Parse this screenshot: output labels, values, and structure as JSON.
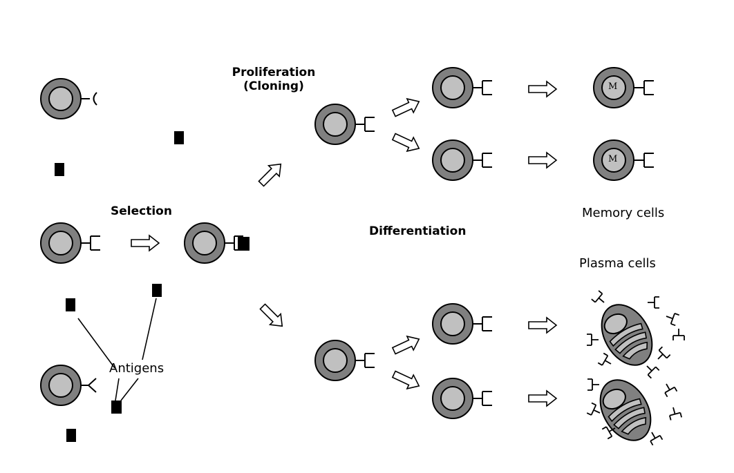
{
  "labels": {
    "proliferation_line1": "Proliferation",
    "proliferation_line2": "(Cloning)",
    "selection": "Selection",
    "differentiation": "Differentiation",
    "memory_cells": "Memory cells",
    "plasma_cells": "Plasma cells",
    "antigens": "Antigens",
    "memory_mark": "M"
  },
  "colors": {
    "cell_outer": "#808080",
    "cell_inner": "#c0c0c0",
    "antigen": "#000000",
    "plasma_body": "#808080",
    "plasma_stripe": "#c0c0c0"
  }
}
